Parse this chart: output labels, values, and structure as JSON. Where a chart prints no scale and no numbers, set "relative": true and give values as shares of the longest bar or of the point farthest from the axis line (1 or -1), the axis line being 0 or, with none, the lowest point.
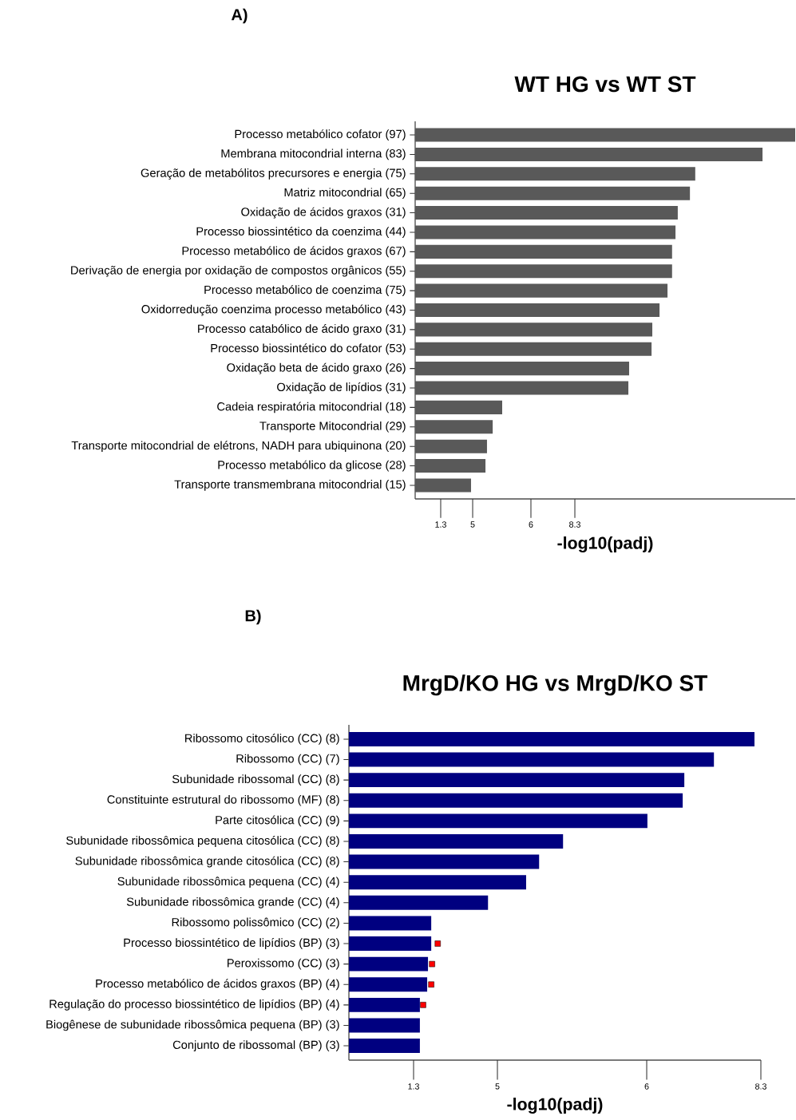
{
  "chart_data": [
    {
      "type": "bar",
      "orientation": "horizontal",
      "relative": true,
      "title": "WT HG vs WT ST",
      "xlabel": "-log10(padj)",
      "annotations": [
        "A)",
        "1.3",
        "5",
        "6",
        "8.3"
      ],
      "categories": [
        "Processo metabólico cofator (97)",
        "Membrana mitocondrial interna (83)",
        "Geração de metabólitos precursores e energia (75)",
        "Matriz mitocondrial (65)",
        "Oxidação de ácidos graxos (31)",
        "Processo biossintético da coenzima (44)",
        "Processo metabólico de ácidos graxos (67)",
        "Derivação de energia por oxidação de compostos orgânicos (55)",
        "Processo metabólico de coenzima (75)",
        "Oxidorredução coenzima processo metabólico (43)",
        "Processo catabólico de ácido graxo (31)",
        "Processo biossintético do cofator (53)",
        "Oxidação beta de ácido graxo (26)",
        "Oxidação de lipídios (31)",
        "Cadeia respiratória mitocondrial (18)",
        "Transporte Mitocondrial (29)",
        "Transporte mitocondrial de elétrons, NADH para ubiquinona (20)",
        "Processo metabólico da glicose (28)",
        "Transporte transmembrana mitocondrial (15)"
      ],
      "series": [
        {
          "color": "#595959",
          "values": [
            1.0,
            0.914,
            0.737,
            0.723,
            0.691,
            0.685,
            0.676,
            0.676,
            0.664,
            0.643,
            0.624,
            0.622,
            0.563,
            0.561,
            0.229,
            0.204,
            0.189,
            0.185,
            0.147
          ]
        }
      ]
    },
    {
      "type": "bar",
      "orientation": "horizontal",
      "relative": true,
      "title": "MrgD/KO HG vs MrgD/KO ST",
      "xlabel": "-log10(padj)",
      "annotations": [
        "B)",
        "1.3",
        "5",
        "6",
        "8.3"
      ],
      "categories": [
        "Ribossomo citosólico (CC) (8)",
        "Ribossomo (CC) (7)",
        "Subunidade ribossomal (CC) (8)",
        "Constituinte estrutural do ribossomo (MF) (8)",
        "Parte citosólica (CC) (9)",
        "Subunidade ribossômica pequena citosólica (CC) (8)",
        "Subunidade ribossômica grande citosólica (CC) (8)",
        "Subunidade ribossômica pequena (CC) (4)",
        "Subunidade ribossômica grande (CC) (4)",
        "Ribossomo polissômico (CC) (2)",
        "Processo biossintético de lipídios (BP) (3)",
        "Peroxissomo (CC) (3)",
        "Processo metabólico de ácidos graxos (BP) (4)",
        "Regulação do processo biossintético de lipídios (BP) (4)",
        "Biogênese de subunidade ribossômica pequena (BP) (3)",
        "Conjunto de ribossomal (BP) (3)"
      ],
      "series": [
        {
          "color": "#000080",
          "values": [
            1.0,
            0.9,
            0.827,
            0.823,
            0.736,
            0.528,
            0.469,
            0.437,
            0.343,
            0.203,
            0.203,
            0.195,
            0.193,
            0.175,
            0.175,
            0.175
          ]
        },
        {
          "type": "scatter",
          "color": "#ff0000",
          "marker": "square",
          "values": [
            null,
            null,
            null,
            null,
            null,
            null,
            null,
            null,
            null,
            null,
            0.219,
            0.205,
            0.203,
            0.183,
            null,
            null
          ]
        }
      ]
    }
  ]
}
